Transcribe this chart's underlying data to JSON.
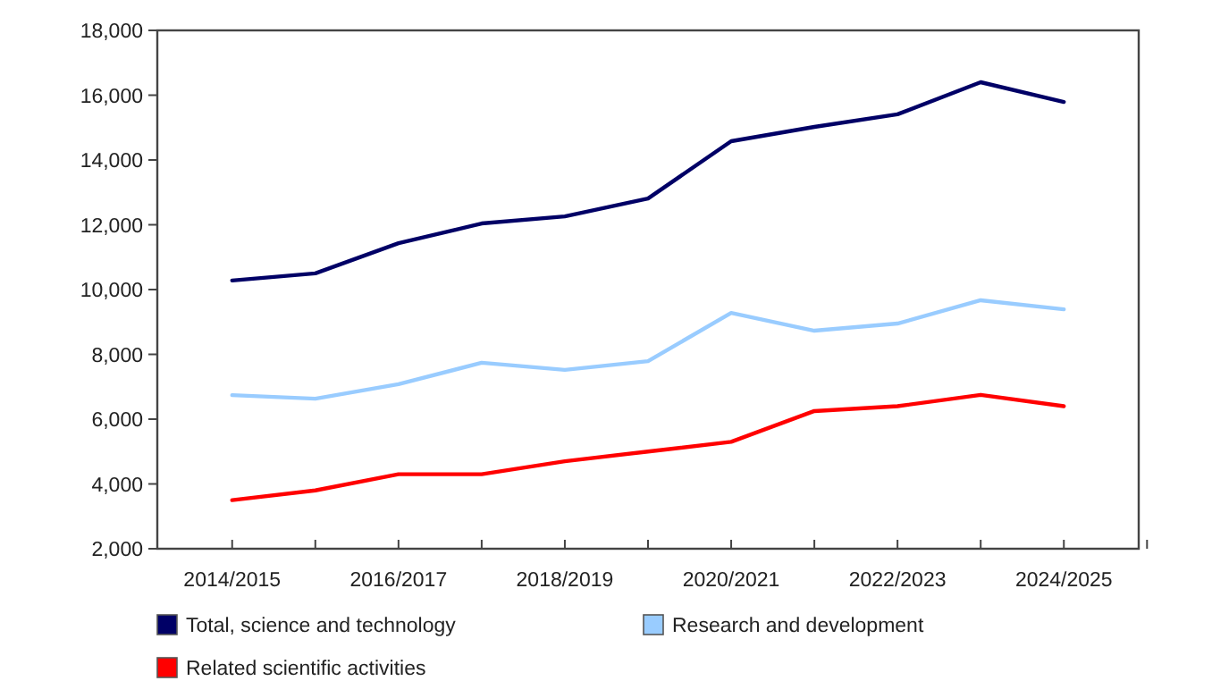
{
  "chart_data": {
    "type": "line",
    "categories": [
      "2014/2015",
      null,
      "2016/2017",
      null,
      "2018/2019",
      null,
      "2020/2021",
      null,
      "2022/2023",
      null,
      "2024/2025"
    ],
    "series": [
      {
        "name": "Total, science and technology",
        "color": "#000066",
        "values": [
          10280,
          10500,
          11430,
          12040,
          12260,
          12810,
          14580,
          15020,
          15410,
          16400,
          15790
        ]
      },
      {
        "name": "Research and development",
        "color": "#99ccff",
        "values": [
          6740,
          6630,
          7080,
          7740,
          7520,
          7790,
          9280,
          8730,
          8950,
          9670,
          9390
        ]
      },
      {
        "name": "Related scientific activities",
        "color": "#ff0000",
        "values": [
          3500,
          3800,
          4300,
          4300,
          4700,
          5000,
          5300,
          6250,
          6400,
          6750,
          6400
        ]
      }
    ],
    "ylim": [
      2000,
      18000
    ],
    "yticks": [
      {
        "value": 2000,
        "label": "2,000"
      },
      {
        "value": 4000,
        "label": "4,000"
      },
      {
        "value": 6000,
        "label": "6,000"
      },
      {
        "value": 8000,
        "label": "8,000"
      },
      {
        "value": 10000,
        "label": "10,000"
      },
      {
        "value": 12000,
        "label": "12,000"
      },
      {
        "value": 14000,
        "label": "14,000"
      },
      {
        "value": 16000,
        "label": "16,000"
      },
      {
        "value": 18000,
        "label": "18,000"
      }
    ],
    "grid": false,
    "legend": "bottom",
    "marker": "none",
    "line_style": "solid"
  }
}
